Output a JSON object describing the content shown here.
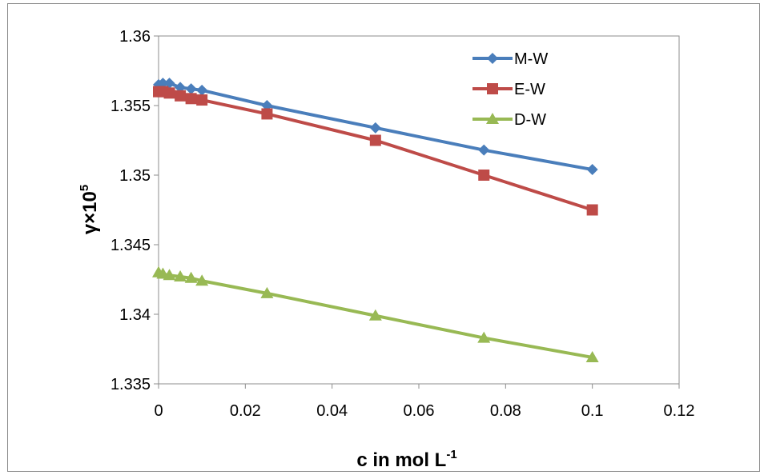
{
  "chart_data": {
    "type": "line",
    "xlabel": "c in mol L",
    "xlabel_sup": "-1",
    "ylabel": "γ×10",
    "ylabel_sup": "5",
    "xlim": [
      0,
      0.12
    ],
    "ylim": [
      1.335,
      1.36
    ],
    "xticks": [
      "0",
      "0.02",
      "0.04",
      "0.06",
      "0.08",
      "0.1",
      "0.12"
    ],
    "yticks": [
      "1.335",
      "1.34",
      "1.345",
      "1.35",
      "1.355",
      "1.36"
    ],
    "x": [
      0,
      0.001,
      0.0025,
      0.005,
      0.0075,
      0.01,
      0.025,
      0.05,
      0.075,
      0.1
    ],
    "legend_position": "top-right",
    "series": [
      {
        "name": "M-W",
        "color": "#4a7ebb",
        "marker": "diamond",
        "values": [
          1.3565,
          1.3566,
          1.3566,
          1.3563,
          1.3562,
          1.3561,
          1.355,
          1.3534,
          1.3518,
          1.3504
        ]
      },
      {
        "name": "E-W",
        "color": "#be4b48",
        "marker": "square",
        "values": [
          1.356,
          1.356,
          1.3559,
          1.3557,
          1.3555,
          1.3554,
          1.3544,
          1.3525,
          1.35,
          1.3475
        ]
      },
      {
        "name": "D-W",
        "color": "#98b954",
        "marker": "triangle",
        "values": [
          1.343,
          1.3429,
          1.3428,
          1.3427,
          1.3426,
          1.3424,
          1.3415,
          1.3399,
          1.3383,
          1.3369
        ]
      }
    ]
  }
}
